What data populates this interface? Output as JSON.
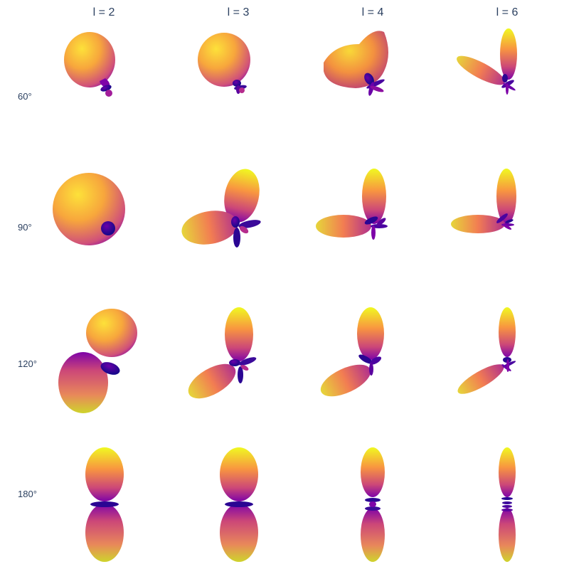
{
  "columns": [
    {
      "label": "l = 2"
    },
    {
      "label": "l = 3"
    },
    {
      "label": "l = 4"
    },
    {
      "label": "l = 6"
    }
  ],
  "rows": [
    {
      "label": "60°"
    },
    {
      "label": "90°"
    },
    {
      "label": "120°"
    },
    {
      "label": "180°"
    }
  ],
  "colors": {
    "background": "#ffffff",
    "label_text": "#2a3f5f",
    "colorscale": [
      "#0d0887",
      "#7e03a8",
      "#cc4778",
      "#f89540",
      "#f0f921"
    ]
  }
}
